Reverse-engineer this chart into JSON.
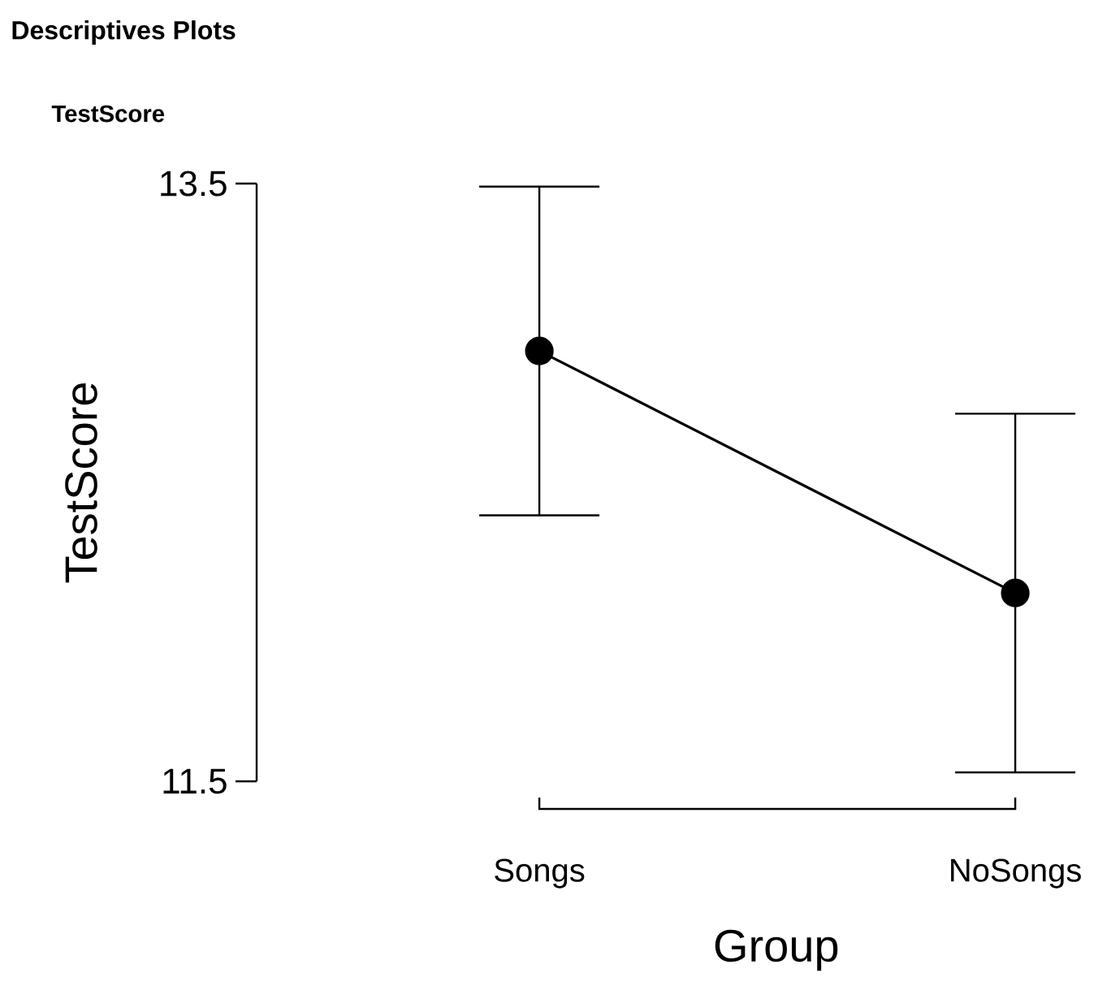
{
  "chart_data": {
    "type": "line",
    "title": "Descriptives Plots",
    "subtitle": "TestScore",
    "xlabel": "Group",
    "ylabel": "TestScore",
    "categories": [
      "Songs",
      "NoSongs"
    ],
    "series": [
      {
        "color": "#000000",
        "values": [
          12.94,
          12.13
        ],
        "errors": [
          0.55,
          0.6
        ]
      }
    ],
    "ylim": [
      11.5,
      13.5
    ],
    "yticks": [
      11.5,
      13.5
    ],
    "grid": false,
    "marker": "circle",
    "line_style": "solid"
  }
}
